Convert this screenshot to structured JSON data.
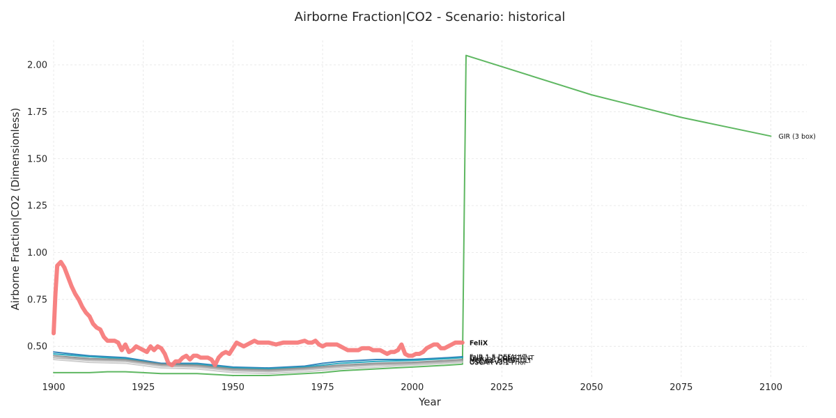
{
  "chart_data": {
    "type": "line",
    "title": "Airborne Fraction|CO2 - Scenario: historical",
    "xlabel": "Year",
    "ylabel": "Airborne Fraction|CO2 (Dimensionless)",
    "xlim": [
      1900,
      2110
    ],
    "ylim": [
      0.33,
      2.13
    ],
    "xticks": [
      1900,
      1925,
      1950,
      1975,
      2000,
      2025,
      2050,
      2075,
      2100
    ],
    "yticks": [
      0.5,
      0.75,
      1.0,
      1.25,
      1.5,
      1.75,
      2.0
    ],
    "grid": true,
    "legend": "none (series labelled at line ends)",
    "series": [
      {
        "name": "FeliX",
        "color": "#f77b7b",
        "highlight": true,
        "points": [
          [
            1900,
            0.57
          ],
          [
            1900.5,
            0.78
          ],
          [
            1901,
            0.93
          ],
          [
            1902,
            0.95
          ],
          [
            1903,
            0.92
          ],
          [
            1904,
            0.87
          ],
          [
            1905,
            0.82
          ],
          [
            1906,
            0.78
          ],
          [
            1907,
            0.75
          ],
          [
            1908,
            0.71
          ],
          [
            1909,
            0.68
          ],
          [
            1910,
            0.66
          ],
          [
            1911,
            0.62
          ],
          [
            1912,
            0.6
          ],
          [
            1913,
            0.59
          ],
          [
            1914,
            0.55
          ],
          [
            1915,
            0.53
          ],
          [
            1916,
            0.53
          ],
          [
            1917,
            0.53
          ],
          [
            1918,
            0.52
          ],
          [
            1919,
            0.48
          ],
          [
            1920,
            0.51
          ],
          [
            1921,
            0.47
          ],
          [
            1922,
            0.48
          ],
          [
            1923,
            0.5
          ],
          [
            1924,
            0.49
          ],
          [
            1925,
            0.48
          ],
          [
            1926,
            0.47
          ],
          [
            1927,
            0.5
          ],
          [
            1928,
            0.48
          ],
          [
            1929,
            0.5
          ],
          [
            1930,
            0.49
          ],
          [
            1931,
            0.46
          ],
          [
            1932,
            0.41
          ],
          [
            1933,
            0.4
          ],
          [
            1934,
            0.42
          ],
          [
            1935,
            0.42
          ],
          [
            1936,
            0.44
          ],
          [
            1937,
            0.45
          ],
          [
            1938,
            0.43
          ],
          [
            1939,
            0.45
          ],
          [
            1940,
            0.45
          ],
          [
            1941,
            0.44
          ],
          [
            1942,
            0.44
          ],
          [
            1943,
            0.44
          ],
          [
            1944,
            0.43
          ],
          [
            1945,
            0.4
          ],
          [
            1946,
            0.44
          ],
          [
            1947,
            0.46
          ],
          [
            1948,
            0.47
          ],
          [
            1949,
            0.46
          ],
          [
            1950,
            0.49
          ],
          [
            1951,
            0.52
          ],
          [
            1952,
            0.51
          ],
          [
            1953,
            0.5
          ],
          [
            1954,
            0.51
          ],
          [
            1955,
            0.52
          ],
          [
            1956,
            0.53
          ],
          [
            1957,
            0.52
          ],
          [
            1958,
            0.52
          ],
          [
            1959,
            0.52
          ],
          [
            1960,
            0.52
          ],
          [
            1962,
            0.51
          ],
          [
            1964,
            0.52
          ],
          [
            1966,
            0.52
          ],
          [
            1968,
            0.52
          ],
          [
            1970,
            0.53
          ],
          [
            1971,
            0.52
          ],
          [
            1972,
            0.52
          ],
          [
            1973,
            0.53
          ],
          [
            1974,
            0.51
          ],
          [
            1975,
            0.5
          ],
          [
            1976,
            0.51
          ],
          [
            1977,
            0.51
          ],
          [
            1978,
            0.51
          ],
          [
            1979,
            0.51
          ],
          [
            1980,
            0.5
          ],
          [
            1981,
            0.49
          ],
          [
            1982,
            0.48
          ],
          [
            1983,
            0.48
          ],
          [
            1984,
            0.48
          ],
          [
            1985,
            0.48
          ],
          [
            1986,
            0.49
          ],
          [
            1987,
            0.49
          ],
          [
            1988,
            0.49
          ],
          [
            1989,
            0.48
          ],
          [
            1990,
            0.48
          ],
          [
            1991,
            0.48
          ],
          [
            1992,
            0.47
          ],
          [
            1993,
            0.46
          ],
          [
            1994,
            0.47
          ],
          [
            1995,
            0.47
          ],
          [
            1996,
            0.48
          ],
          [
            1997,
            0.51
          ],
          [
            1998,
            0.46
          ],
          [
            1999,
            0.45
          ],
          [
            2000,
            0.45
          ],
          [
            2001,
            0.46
          ],
          [
            2002,
            0.46
          ],
          [
            2003,
            0.47
          ],
          [
            2004,
            0.49
          ],
          [
            2005,
            0.5
          ],
          [
            2006,
            0.51
          ],
          [
            2007,
            0.51
          ],
          [
            2008,
            0.49
          ],
          [
            2009,
            0.49
          ],
          [
            2010,
            0.5
          ],
          [
            2011,
            0.51
          ],
          [
            2012,
            0.52
          ],
          [
            2013,
            0.52
          ],
          [
            2014,
            0.52
          ]
        ]
      },
      {
        "name": "GIR (3 box)",
        "color": "#4caf50",
        "highlight": false,
        "points": [
          [
            1900,
            0.36
          ],
          [
            1905,
            0.36
          ],
          [
            1910,
            0.36
          ],
          [
            1915,
            0.365
          ],
          [
            1920,
            0.365
          ],
          [
            1925,
            0.36
          ],
          [
            1930,
            0.355
          ],
          [
            1935,
            0.355
          ],
          [
            1940,
            0.355
          ],
          [
            1945,
            0.35
          ],
          [
            1950,
            0.345
          ],
          [
            1955,
            0.345
          ],
          [
            1960,
            0.345
          ],
          [
            1965,
            0.35
          ],
          [
            1970,
            0.355
          ],
          [
            1975,
            0.36
          ],
          [
            1980,
            0.37
          ],
          [
            1985,
            0.375
          ],
          [
            1990,
            0.38
          ],
          [
            1995,
            0.385
          ],
          [
            2000,
            0.39
          ],
          [
            2005,
            0.395
          ],
          [
            2010,
            0.4
          ],
          [
            2014,
            0.405
          ],
          [
            2015,
            2.05
          ],
          [
            2025,
            1.99
          ],
          [
            2050,
            1.84
          ],
          [
            2075,
            1.72
          ],
          [
            2100,
            1.62
          ]
        ]
      },
      {
        "name": "FaIR 1.5 DEFAULT",
        "color": "#1f77b4",
        "highlight": false,
        "points": [
          [
            1900,
            0.47
          ],
          [
            1910,
            0.45
          ],
          [
            1920,
            0.44
          ],
          [
            1930,
            0.41
          ],
          [
            1940,
            0.41
          ],
          [
            1950,
            0.39
          ],
          [
            1960,
            0.385
          ],
          [
            1970,
            0.395
          ],
          [
            1975,
            0.41
          ],
          [
            1980,
            0.42
          ],
          [
            1990,
            0.43
          ],
          [
            2000,
            0.43
          ],
          [
            2010,
            0.44
          ],
          [
            2014,
            0.445
          ]
        ]
      },
      {
        "name": "FaIR 1.5 CONSTANT",
        "color": "#17a2b8",
        "highlight": false,
        "points": [
          [
            1900,
            0.46
          ],
          [
            1910,
            0.445
          ],
          [
            1920,
            0.435
          ],
          [
            1930,
            0.405
          ],
          [
            1940,
            0.405
          ],
          [
            1950,
            0.385
          ],
          [
            1960,
            0.38
          ],
          [
            1970,
            0.39
          ],
          [
            1975,
            0.4
          ],
          [
            1980,
            0.41
          ],
          [
            1990,
            0.42
          ],
          [
            2000,
            0.425
          ],
          [
            2010,
            0.435
          ],
          [
            2014,
            0.44
          ]
        ]
      },
      {
        "name": "MAGICC7 Hist",
        "color": "#888888",
        "highlight": false,
        "points": [
          [
            1900,
            0.45
          ],
          [
            1910,
            0.435
          ],
          [
            1920,
            0.43
          ],
          [
            1930,
            0.405
          ],
          [
            1940,
            0.4
          ],
          [
            1950,
            0.38
          ],
          [
            1960,
            0.375
          ],
          [
            1970,
            0.385
          ],
          [
            1980,
            0.4
          ],
          [
            1990,
            0.41
          ],
          [
            2000,
            0.415
          ],
          [
            2010,
            0.425
          ],
          [
            2014,
            0.43
          ]
        ]
      },
      {
        "name": "MCE-v1-1 DEFAULT",
        "color": "#9e9e9e",
        "highlight": false,
        "points": [
          [
            1900,
            0.44
          ],
          [
            1910,
            0.43
          ],
          [
            1920,
            0.425
          ],
          [
            1930,
            0.4
          ],
          [
            1940,
            0.395
          ],
          [
            1950,
            0.375
          ],
          [
            1960,
            0.37
          ],
          [
            1970,
            0.38
          ],
          [
            1980,
            0.395
          ],
          [
            1990,
            0.405
          ],
          [
            2000,
            0.41
          ],
          [
            2010,
            0.42
          ],
          [
            2014,
            0.425
          ]
        ]
      },
      {
        "name": "OSCAR v3.1",
        "color": "#b8b8b8",
        "highlight": false,
        "points": [
          [
            1900,
            0.44
          ],
          [
            1910,
            0.425
          ],
          [
            1920,
            0.42
          ],
          [
            1930,
            0.395
          ],
          [
            1940,
            0.39
          ],
          [
            1950,
            0.37
          ],
          [
            1960,
            0.365
          ],
          [
            1970,
            0.375
          ],
          [
            1980,
            0.39
          ],
          [
            1990,
            0.4
          ],
          [
            2000,
            0.405
          ],
          [
            2010,
            0.415
          ],
          [
            2014,
            0.42
          ]
        ]
      },
      {
        "name": "OSCAR v3.1 Prior",
        "color": "#c9c9c9",
        "highlight": false,
        "points": [
          [
            1900,
            0.43
          ],
          [
            1910,
            0.415
          ],
          [
            1920,
            0.41
          ],
          [
            1930,
            0.385
          ],
          [
            1940,
            0.38
          ],
          [
            1950,
            0.36
          ],
          [
            1960,
            0.355
          ],
          [
            1970,
            0.365
          ],
          [
            1980,
            0.38
          ],
          [
            1990,
            0.39
          ],
          [
            2000,
            0.4
          ],
          [
            2010,
            0.41
          ],
          [
            2014,
            0.415
          ]
        ]
      }
    ]
  }
}
